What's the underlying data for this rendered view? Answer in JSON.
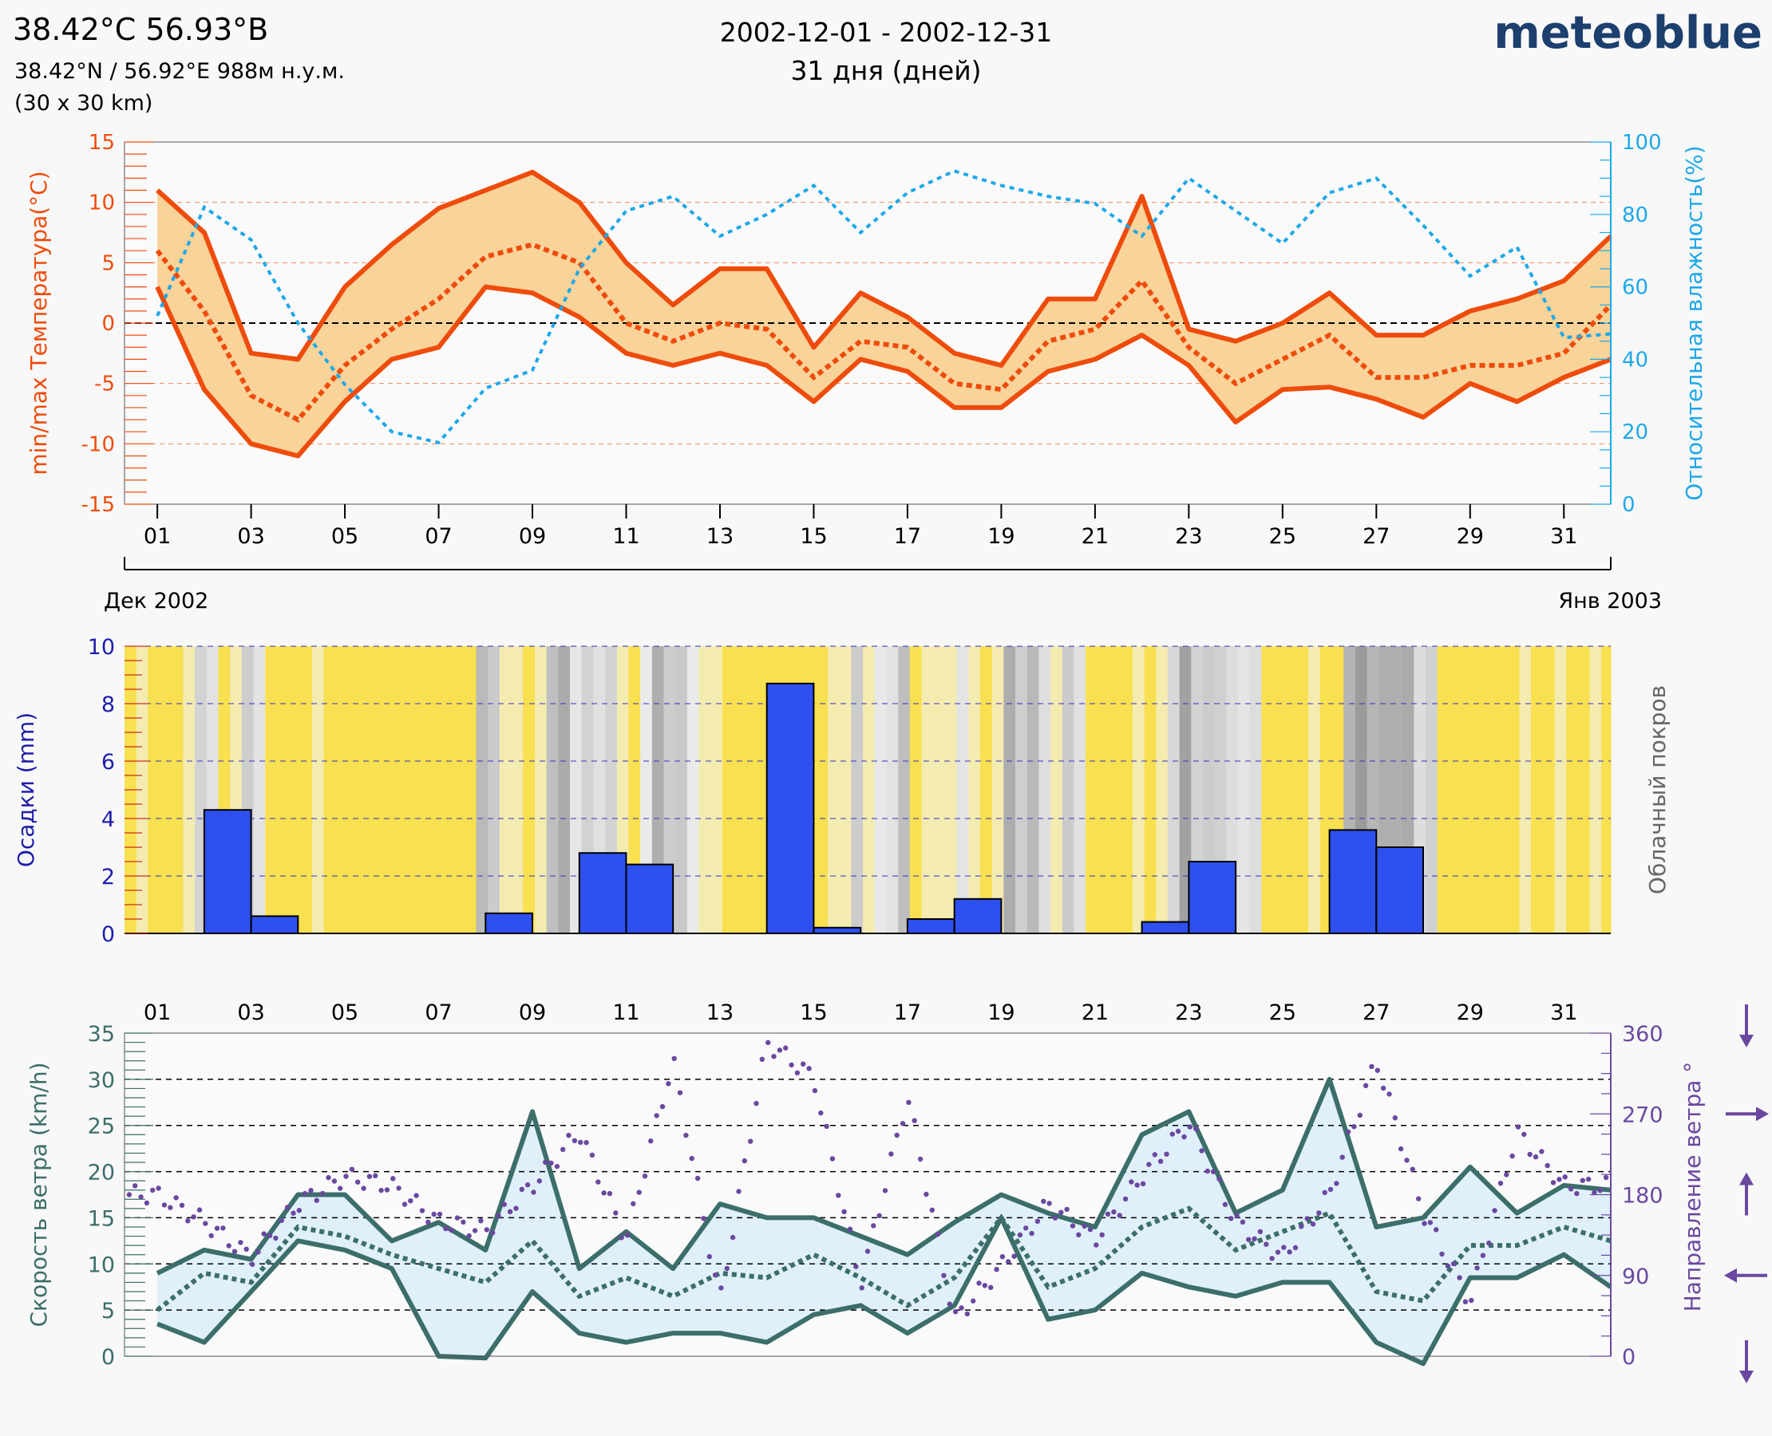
{
  "header": {
    "title": "38.42°С 56.93°В",
    "coords": "38.42°N / 56.92°E   988м н.у.м.",
    "grid": "(30 x 30 km)",
    "date_range": "2002-12-01 - 2002-12-31",
    "days": "31 дня (дней)",
    "logo": "meteoblue"
  },
  "colors": {
    "temp": "#ee4c0c",
    "temp_fill": "#f8d39a",
    "humidity": "#1ea8e8",
    "precip": "#2e50ee",
    "precip_axis": "#1e1eaa",
    "cloud_clear": "#f8e050",
    "wind": "#3c6e6a",
    "wind_fill": "#e0f0fa",
    "wind_dir": "#6a48a0"
  },
  "chart_data": [
    {
      "type": "line",
      "name": "temperature-humidity",
      "x": [
        1,
        2,
        3,
        4,
        5,
        6,
        7,
        8,
        9,
        10,
        11,
        12,
        13,
        14,
        15,
        16,
        17,
        18,
        19,
        20,
        21,
        22,
        23,
        24,
        25,
        26,
        27,
        28,
        29,
        30,
        31,
        32
      ],
      "series": [
        {
          "name": "max temperature",
          "axis": "left",
          "values": [
            11,
            7.5,
            -2.5,
            -3,
            3,
            6.5,
            9.5,
            11,
            12.5,
            10,
            5,
            1.5,
            4.5,
            4.5,
            -2,
            2.5,
            0.5,
            -2.5,
            -3.5,
            2,
            2,
            10.5,
            -0.5,
            -1.5,
            0,
            2.5,
            -1,
            -1,
            1,
            2,
            3.5,
            7.2
          ]
        },
        {
          "name": "mean temperature",
          "axis": "left",
          "values": [
            6,
            1,
            -6,
            -8,
            -3.5,
            -0.5,
            2,
            5.5,
            6.5,
            5,
            0,
            -1.5,
            0,
            -0.5,
            -4.5,
            -1.5,
            -2,
            -5,
            -5.5,
            -1.5,
            -0.5,
            3.5,
            -2,
            -5,
            -3,
            -1,
            -4.5,
            -4.5,
            -3.5,
            -3.5,
            -2.5,
            1.5
          ]
        },
        {
          "name": "min temperature",
          "axis": "left",
          "values": [
            3,
            -5.5,
            -10,
            -11,
            -6.5,
            -3,
            -2,
            3,
            2.5,
            0.5,
            -2.5,
            -3.5,
            -2.5,
            -3.5,
            -6.5,
            -3,
            -4,
            -7,
            -7,
            -4,
            -3,
            -1,
            -3.5,
            -8.2,
            -5.5,
            -5.3,
            -6.3,
            -7.8,
            -5,
            -6.5,
            -4.5,
            -3
          ]
        },
        {
          "name": "relative humidity",
          "axis": "right",
          "values": [
            52,
            82,
            73,
            50,
            33,
            20,
            17,
            32,
            37,
            65,
            81,
            85,
            74,
            80,
            88,
            75,
            86,
            92,
            88,
            85,
            83,
            74,
            90,
            81,
            72,
            86,
            90,
            77,
            63,
            71,
            46,
            47
          ]
        }
      ],
      "ylabel": "min/max Температура(°C)",
      "y2label": "Относительная влажность(%)",
      "ylim": [
        -15,
        15
      ],
      "y2lim": [
        0,
        100
      ],
      "yticks": [
        "15",
        "10",
        "5",
        "0",
        "-5",
        "-10",
        "-15"
      ],
      "y2ticks": [
        "100",
        "80",
        "60",
        "40",
        "20",
        "0"
      ],
      "xticks": [
        "01",
        "03",
        "05",
        "07",
        "09",
        "11",
        "13",
        "15",
        "17",
        "19",
        "21",
        "23",
        "25",
        "27",
        "29",
        "31"
      ],
      "month_start": "Дек 2002",
      "month_end": "Янв 2003"
    },
    {
      "type": "bar",
      "name": "precipitation-cloud",
      "x": [
        1,
        2,
        3,
        4,
        5,
        6,
        7,
        8,
        9,
        10,
        11,
        12,
        13,
        14,
        15,
        16,
        17,
        18,
        19,
        20,
        21,
        22,
        23,
        24,
        25,
        26,
        27,
        28,
        29,
        30,
        31,
        32
      ],
      "values": [
        0,
        4.3,
        0.6,
        0,
        0,
        0,
        0,
        0.7,
        0,
        2.8,
        2.4,
        0,
        0,
        8.7,
        0.2,
        0,
        0.5,
        1.2,
        0,
        0,
        0,
        0.4,
        2.5,
        0,
        0,
        3.6,
        3,
        0,
        0,
        0,
        0,
        0
      ],
      "cloud_cover_daily_pct": [
        0,
        40,
        70,
        0,
        0,
        0,
        0,
        45,
        10,
        75,
        60,
        55,
        20,
        15,
        30,
        35,
        55,
        70,
        70,
        45,
        30,
        55,
        65,
        20,
        15,
        60,
        70,
        45,
        5,
        0,
        0,
        5
      ],
      "ylabel": "Осадки (mm)",
      "y2label": "Облачный покров",
      "ylim": [
        0,
        10
      ],
      "yticks": [
        "10",
        "8",
        "6",
        "4",
        "2",
        "0"
      ]
    },
    {
      "type": "line",
      "name": "wind",
      "x": [
        1,
        2,
        3,
        4,
        5,
        6,
        7,
        8,
        9,
        10,
        11,
        12,
        13,
        14,
        15,
        16,
        17,
        18,
        19,
        20,
        21,
        22,
        23,
        24,
        25,
        26,
        27,
        28,
        29,
        30,
        31,
        32
      ],
      "series": [
        {
          "name": "max wind speed",
          "axis": "left",
          "values": [
            9,
            11.5,
            10.5,
            17.5,
            17.5,
            12.5,
            14.5,
            11.5,
            26.5,
            9.5,
            13.5,
            9.5,
            16.5,
            15,
            15,
            13,
            11,
            14.5,
            17.5,
            15.5,
            14,
            24,
            26.5,
            15.5,
            18,
            30,
            14,
            15,
            20.5,
            15.5,
            18.5,
            18
          ]
        },
        {
          "name": "mean wind speed",
          "axis": "left",
          "values": [
            5,
            9,
            8,
            14,
            13,
            11,
            9.5,
            8,
            12.5,
            6.5,
            8.5,
            6.5,
            9,
            8.5,
            11,
            8.5,
            5.5,
            8.5,
            15,
            7.5,
            9.5,
            14,
            16,
            11.5,
            13.5,
            15.5,
            7,
            6,
            12,
            12,
            14,
            12.5
          ]
        },
        {
          "name": "min wind speed",
          "axis": "left",
          "values": [
            3.5,
            1.5,
            7,
            12.5,
            11.5,
            9.5,
            0,
            -0.2,
            7,
            2.5,
            1.5,
            2.5,
            2.5,
            1.5,
            4.5,
            5.5,
            2.5,
            5.5,
            15,
            4,
            5,
            9,
            7.5,
            6.5,
            8,
            8,
            1.5,
            -0.8,
            8.5,
            8.5,
            11,
            7.5
          ]
        },
        {
          "name": "wind direction",
          "axis": "right",
          "values": [
            180,
            150,
            110,
            170,
            200,
            190,
            150,
            140,
            190,
            250,
            130,
            330,
            60,
            350,
            310,
            80,
            290,
            40,
            100,
            170,
            130,
            200,
            260,
            150,
            110,
            180,
            330,
            160,
            60,
            250,
            190,
            190
          ]
        }
      ],
      "ylabel": "Скорость ветра (km/h)",
      "y2label": "Направление ветра °",
      "ylim": [
        0,
        35
      ],
      "y2lim": [
        0,
        360
      ],
      "yticks": [
        "35",
        "30",
        "25",
        "20",
        "15",
        "10",
        "5",
        "0"
      ],
      "y2ticks": [
        "360",
        "270",
        "180",
        "90",
        "0"
      ],
      "xticks": [
        "01",
        "03",
        "05",
        "07",
        "09",
        "11",
        "13",
        "15",
        "17",
        "19",
        "21",
        "23",
        "25",
        "27",
        "29",
        "31"
      ]
    }
  ]
}
